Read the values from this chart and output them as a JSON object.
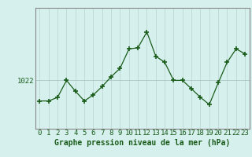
{
  "x": [
    0,
    1,
    2,
    3,
    4,
    5,
    6,
    7,
    8,
    9,
    10,
    11,
    12,
    13,
    14,
    15,
    16,
    17,
    18,
    19,
    20,
    21,
    22,
    23
  ],
  "y": [
    1020.3,
    1020.3,
    1020.6,
    1022.0,
    1021.1,
    1020.3,
    1020.8,
    1021.5,
    1022.3,
    1023.0,
    1024.6,
    1024.7,
    1026.0,
    1024.0,
    1023.5,
    1022.0,
    1022.0,
    1021.3,
    1020.6,
    1020.0,
    1021.8,
    1023.5,
    1024.6,
    1024.2
  ],
  "line_color": "#1a5c1a",
  "marker": "+",
  "marker_color": "#1a5c1a",
  "bg_color": "#d6f0ee",
  "grid_color_v": "#c0d8d4",
  "grid_color_h": "#aac8c4",
  "ytick_label": "1022",
  "ytick_value": 1022,
  "xlabel": "Graphe pression niveau de la mer (hPa)",
  "xlim": [
    -0.5,
    23.5
  ],
  "ylim": [
    1018.0,
    1028.0
  ],
  "label_fontsize": 7,
  "tick_fontsize": 6.5
}
